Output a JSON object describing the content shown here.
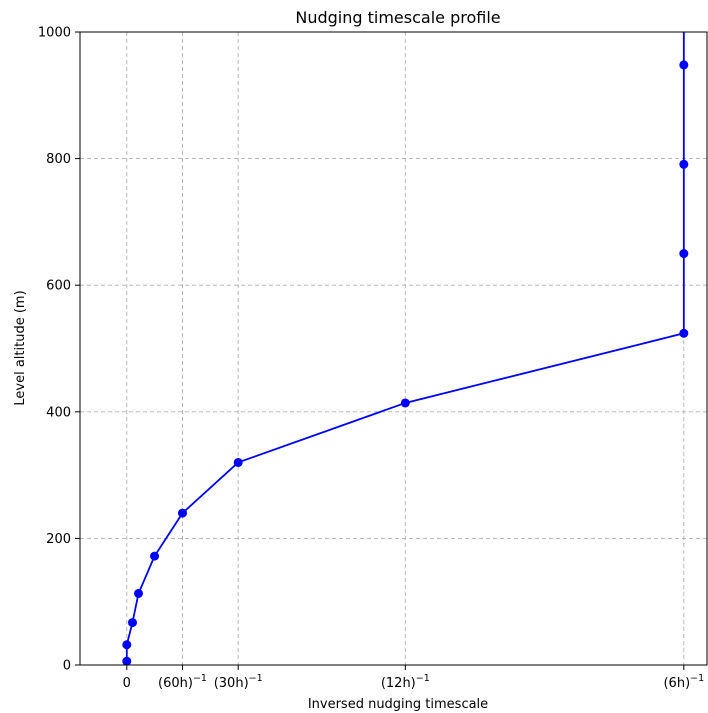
{
  "chart_data": {
    "type": "line",
    "title": "Nudging timescale profile",
    "xlabel": "Inversed nudging timescale",
    "ylabel": "Level altitude (m)",
    "xlim": [
      -0.014,
      0.1736
    ],
    "ylim": [
      0,
      1000
    ],
    "x_ticks": [
      {
        "value": 0,
        "label": "0",
        "sup": ""
      },
      {
        "value": 0.016667,
        "label": "(60h)",
        "sup": "−1"
      },
      {
        "value": 0.033333,
        "label": "(30h)",
        "sup": "−1"
      },
      {
        "value": 0.083333,
        "label": "(12h)",
        "sup": "−1"
      },
      {
        "value": 0.166667,
        "label": "(6h)",
        "sup": "−1"
      }
    ],
    "y_ticks": [
      0,
      200,
      400,
      600,
      800,
      1000
    ],
    "grid": true,
    "series": [
      {
        "color": "#0000ff",
        "points": [
          {
            "x": 0.0,
            "y": 6
          },
          {
            "x": 0.0,
            "y": 32
          },
          {
            "x": 0.0017,
            "y": 67
          },
          {
            "x": 0.0035,
            "y": 113
          },
          {
            "x": 0.0083,
            "y": 172
          },
          {
            "x": 0.016667,
            "y": 240
          },
          {
            "x": 0.033333,
            "y": 320
          },
          {
            "x": 0.083333,
            "y": 414
          },
          {
            "x": 0.166667,
            "y": 524
          },
          {
            "x": 0.166667,
            "y": 650
          },
          {
            "x": 0.166667,
            "y": 791
          },
          {
            "x": 0.166667,
            "y": 948
          },
          {
            "x": 0.166667,
            "y": 1010
          }
        ]
      }
    ]
  }
}
